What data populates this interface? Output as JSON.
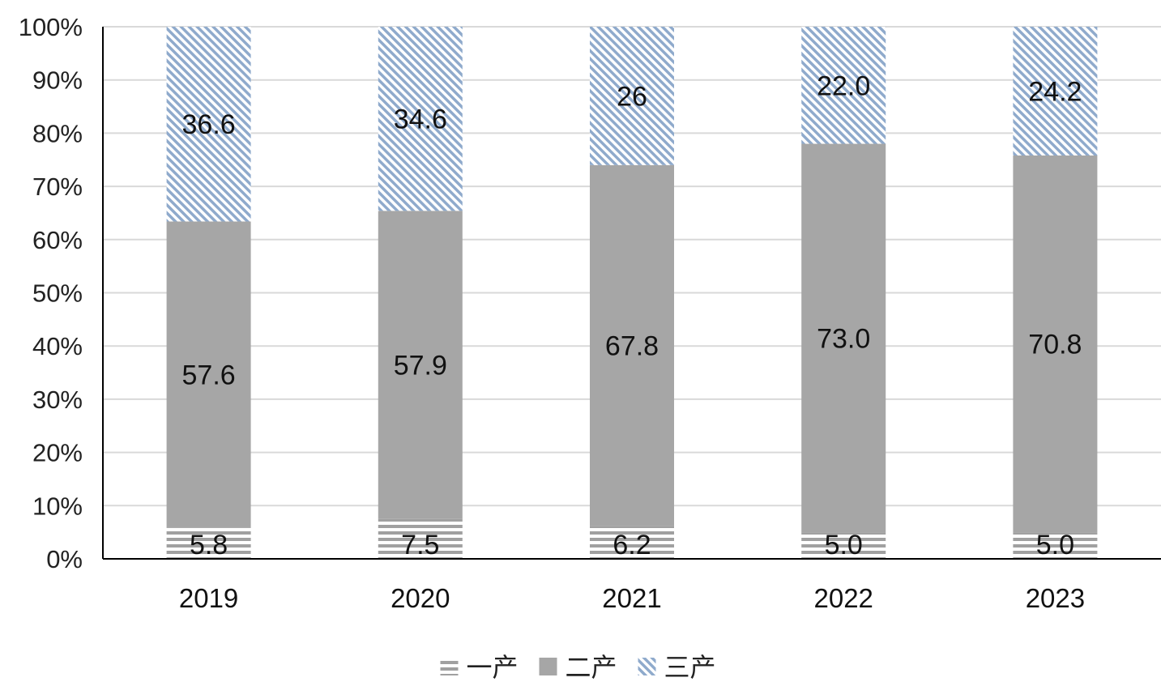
{
  "chart_data": {
    "type": "bar",
    "stacked": true,
    "percent": true,
    "categories": [
      "2019",
      "2020",
      "2021",
      "2022",
      "2023"
    ],
    "series": [
      {
        "name": "一产",
        "values": [
          5.8,
          7.5,
          6.2,
          5.0,
          5.0
        ],
        "labels": [
          "5.8",
          "7.5",
          "6.2",
          "5.0",
          "5.0"
        ],
        "color": "#a0a0a0",
        "pattern": "horizontal-lines"
      },
      {
        "name": "二产",
        "values": [
          57.6,
          57.9,
          67.8,
          73.0,
          70.8
        ],
        "labels": [
          "57.6",
          "57.9",
          "67.8",
          "73.0",
          "70.8"
        ],
        "color": "#a6a6a6",
        "pattern": "solid"
      },
      {
        "name": "三产",
        "values": [
          36.6,
          34.6,
          26,
          22.0,
          24.2
        ],
        "labels": [
          "36.6",
          "34.6",
          "26",
          "22.0",
          "24.2"
        ],
        "color": "#8faacc",
        "pattern": "diagonal-lines"
      }
    ],
    "y_ticks": [
      "0%",
      "10%",
      "20%",
      "30%",
      "40%",
      "50%",
      "60%",
      "70%",
      "80%",
      "90%",
      "100%"
    ],
    "ylim": [
      0,
      100
    ],
    "grid": true,
    "legend_position": "bottom-center"
  }
}
